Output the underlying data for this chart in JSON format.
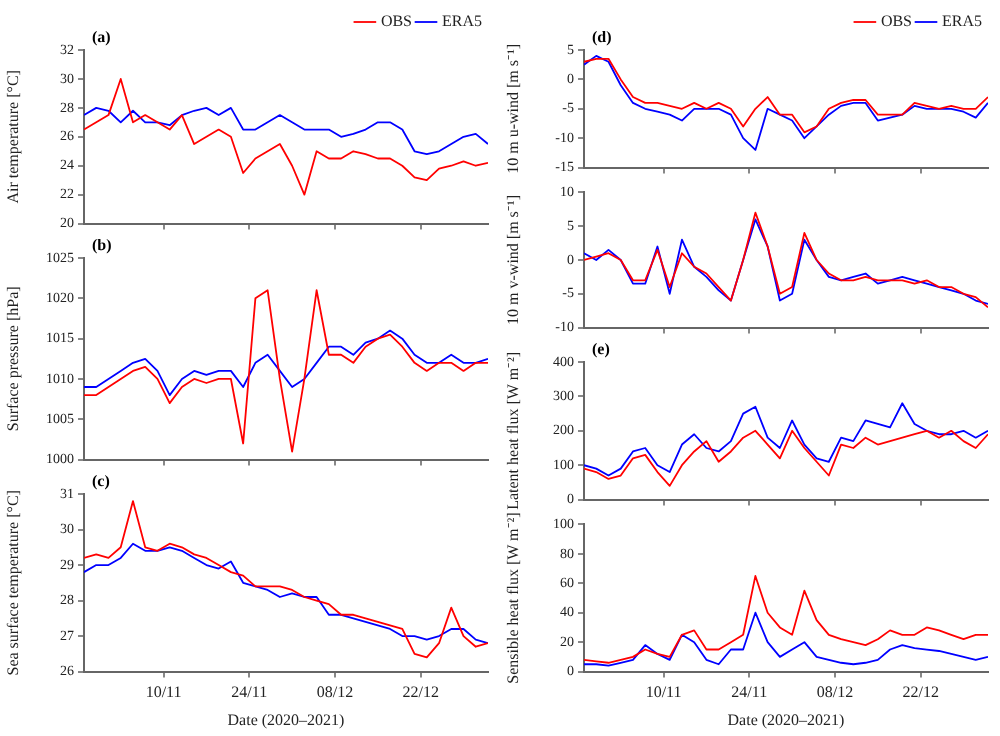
{
  "chart_data": [
    {
      "type": "line",
      "ylabel": "Air temperature [°C]",
      "annotations": [
        "(a)"
      ],
      "legend": "top right",
      "tick_labels": "y",
      "x": [
        "2020-10-28",
        "2020-10-30",
        "2020-11-01",
        "2020-11-03",
        "2020-11-05",
        "2020-11-07",
        "2020-11-09",
        "2020-11-11",
        "2020-11-13",
        "2020-11-15",
        "2020-11-17",
        "2020-11-19",
        "2020-11-21",
        "2020-11-23",
        "2020-11-25",
        "2020-11-27",
        "2020-11-29",
        "2020-12-01",
        "2020-12-03",
        "2020-12-05",
        "2020-12-07",
        "2020-12-09",
        "2020-12-11",
        "2020-12-13",
        "2020-12-15",
        "2020-12-17",
        "2020-12-19",
        "2020-12-21",
        "2020-12-23",
        "2020-12-25",
        "2020-12-27",
        "2020-12-29",
        "2020-12-31",
        "2021-01-02"
      ],
      "xlim": [
        "2020-10-28",
        "2021-01-02"
      ],
      "xticks": [
        {
          "value": "2020-11-10",
          "label": null
        },
        {
          "value": "2020-11-24",
          "label": null
        },
        {
          "value": "2020-12-08",
          "label": null
        },
        {
          "value": "2020-12-22",
          "label": null
        }
      ],
      "ylim": [
        20,
        32
      ],
      "yticks": [
        20,
        22,
        24,
        26,
        28,
        30,
        32
      ],
      "series": [
        {
          "name": "OBS",
          "color": "#ff0000",
          "values": [
            26.5,
            27,
            27.5,
            30,
            27,
            27.5,
            27,
            26.5,
            27.5,
            25.5,
            26,
            26.5,
            26,
            23.5,
            24.5,
            25,
            25.5,
            24,
            22,
            25,
            24.5,
            24.5,
            25,
            24.8,
            24.5,
            24.5,
            24,
            23.2,
            23,
            23.8,
            24,
            24.3,
            24,
            24.2
          ]
        },
        {
          "name": "ERA5",
          "color": "#0000ff",
          "values": [
            27.5,
            28,
            27.8,
            27,
            27.8,
            27,
            27,
            26.8,
            27.5,
            27.8,
            28,
            27.5,
            28,
            26.5,
            26.5,
            27,
            27.5,
            27,
            26.5,
            26.5,
            26.5,
            26,
            26.2,
            26.5,
            27,
            27,
            26.5,
            25,
            24.8,
            25,
            25.5,
            26,
            26.2,
            25.5
          ]
        }
      ]
    },
    {
      "type": "line",
      "ylabel": "Surface pressure [hPa]",
      "annotations": [
        "(b)"
      ],
      "tick_labels": "y",
      "x": [
        "2020-10-28",
        "2020-10-30",
        "2020-11-01",
        "2020-11-03",
        "2020-11-05",
        "2020-11-07",
        "2020-11-09",
        "2020-11-11",
        "2020-11-13",
        "2020-11-15",
        "2020-11-17",
        "2020-11-19",
        "2020-11-21",
        "2020-11-23",
        "2020-11-25",
        "2020-11-27",
        "2020-11-29",
        "2020-12-01",
        "2020-12-03",
        "2020-12-05",
        "2020-12-07",
        "2020-12-09",
        "2020-12-11",
        "2020-12-13",
        "2020-12-15",
        "2020-12-17",
        "2020-12-19",
        "2020-12-21",
        "2020-12-23",
        "2020-12-25",
        "2020-12-27",
        "2020-12-29",
        "2020-12-31",
        "2021-01-02"
      ],
      "xlim": [
        "2020-10-28",
        "2021-01-02"
      ],
      "xticks": [
        {
          "value": "2020-11-10",
          "label": null
        },
        {
          "value": "2020-11-24",
          "label": null
        },
        {
          "value": "2020-12-08",
          "label": null
        },
        {
          "value": "2020-12-22",
          "label": null
        }
      ],
      "ylim": [
        1000,
        1025
      ],
      "yticks": [
        1000,
        1005,
        1010,
        1015,
        1020,
        1025
      ],
      "series": [
        {
          "color": "#ff0000",
          "values": [
            1008,
            1008,
            1009,
            1010,
            1011,
            1011.5,
            1010,
            1007,
            1009,
            1010,
            1009.5,
            1010,
            1010,
            1002,
            1020,
            1021,
            1010,
            1001,
            1010,
            1021,
            1013,
            1013,
            1012,
            1014,
            1015,
            1015.5,
            1014,
            1012,
            1011,
            1012,
            1012,
            1011,
            1012,
            1012
          ]
        },
        {
          "color": "#0000ff",
          "values": [
            1009,
            1009,
            1010,
            1011,
            1012,
            1012.5,
            1011,
            1008,
            1010,
            1011,
            1010.5,
            1011,
            1011,
            1009,
            1012,
            1013,
            1011,
            1009,
            1010,
            1012,
            1014,
            1014,
            1013,
            1014.5,
            1015,
            1016,
            1015,
            1013,
            1012,
            1012,
            1013,
            1012,
            1012,
            1012.5
          ]
        }
      ]
    },
    {
      "type": "line",
      "xlabel": "Date (2020–2021)",
      "ylabel": "Sea surface temperature [°C]",
      "annotations": [
        "(c)"
      ],
      "x": [
        "2020-10-28",
        "2020-10-30",
        "2020-11-01",
        "2020-11-03",
        "2020-11-05",
        "2020-11-07",
        "2020-11-09",
        "2020-11-11",
        "2020-11-13",
        "2020-11-15",
        "2020-11-17",
        "2020-11-19",
        "2020-11-21",
        "2020-11-23",
        "2020-11-25",
        "2020-11-27",
        "2020-11-29",
        "2020-12-01",
        "2020-12-03",
        "2020-12-05",
        "2020-12-07",
        "2020-12-09",
        "2020-12-11",
        "2020-12-13",
        "2020-12-15",
        "2020-12-17",
        "2020-12-19",
        "2020-12-21",
        "2020-12-23",
        "2020-12-25",
        "2020-12-27",
        "2020-12-29",
        "2020-12-31",
        "2021-01-02"
      ],
      "xlim": [
        "2020-10-28",
        "2021-01-02"
      ],
      "xticks": [
        {
          "value": "2020-11-10",
          "label": "10/11"
        },
        {
          "value": "2020-11-24",
          "label": "24/11"
        },
        {
          "value": "2020-12-08",
          "label": "08/12"
        },
        {
          "value": "2020-12-22",
          "label": "22/12"
        }
      ],
      "ylim": [
        26,
        31
      ],
      "yticks": [
        26,
        27,
        28,
        29,
        30,
        31
      ],
      "series": [
        {
          "color": "#ff0000",
          "values": [
            29.2,
            29.3,
            29.2,
            29.5,
            30.8,
            29.5,
            29.4,
            29.6,
            29.5,
            29.3,
            29.2,
            29,
            28.8,
            28.7,
            28.4,
            28.4,
            28.4,
            28.3,
            28.1,
            28,
            27.9,
            27.6,
            27.6,
            27.5,
            27.4,
            27.3,
            27.2,
            26.5,
            26.4,
            26.8,
            27.8,
            27,
            26.7,
            26.8
          ]
        },
        {
          "color": "#0000ff",
          "values": [
            28.8,
            29,
            29,
            29.2,
            29.6,
            29.4,
            29.4,
            29.5,
            29.4,
            29.2,
            29,
            28.9,
            29.1,
            28.5,
            28.4,
            28.3,
            28.1,
            28.2,
            28.1,
            28.1,
            27.6,
            27.6,
            27.5,
            27.4,
            27.3,
            27.2,
            27,
            27,
            26.9,
            27,
            27.2,
            27.2,
            26.9,
            26.8
          ]
        }
      ]
    },
    {
      "type": "line",
      "ylabel": "10 m u-wind [m s⁻¹]",
      "annotations": [
        "(d)"
      ],
      "legend": "top right",
      "tick_labels": "y",
      "x": [
        "2020-10-28",
        "2020-10-30",
        "2020-11-01",
        "2020-11-03",
        "2020-11-05",
        "2020-11-07",
        "2020-11-09",
        "2020-11-11",
        "2020-11-13",
        "2020-11-15",
        "2020-11-17",
        "2020-11-19",
        "2020-11-21",
        "2020-11-23",
        "2020-11-25",
        "2020-11-27",
        "2020-11-29",
        "2020-12-01",
        "2020-12-03",
        "2020-12-05",
        "2020-12-07",
        "2020-12-09",
        "2020-12-11",
        "2020-12-13",
        "2020-12-15",
        "2020-12-17",
        "2020-12-19",
        "2020-12-21",
        "2020-12-23",
        "2020-12-25",
        "2020-12-27",
        "2020-12-29",
        "2020-12-31",
        "2021-01-02"
      ],
      "xlim": [
        "2020-10-28",
        "2021-01-02"
      ],
      "xticks": [
        {
          "value": "2020-11-10",
          "label": null
        },
        {
          "value": "2020-11-24",
          "label": null
        },
        {
          "value": "2020-12-08",
          "label": null
        },
        {
          "value": "2020-12-22",
          "label": null
        }
      ],
      "ylim": [
        -15,
        5
      ],
      "yticks": [
        -15,
        -10,
        -5,
        0,
        5
      ],
      "series": [
        {
          "name": "OBS",
          "color": "#ff0000",
          "values": [
            3,
            3.5,
            3.5,
            0,
            -3,
            -4,
            -4,
            -4.5,
            -5,
            -4,
            -5,
            -4,
            -5,
            -8,
            -5,
            -3,
            -6,
            -6,
            -9,
            -8,
            -5,
            -4,
            -3.5,
            -3.5,
            -6,
            -6,
            -6,
            -4,
            -4.5,
            -5,
            -4.5,
            -5,
            -5,
            -3
          ]
        },
        {
          "name": "ERA5",
          "color": "#0000ff",
          "values": [
            2.5,
            4,
            3,
            -1,
            -4,
            -5,
            -5.5,
            -6,
            -7,
            -5,
            -5,
            -5,
            -6,
            -10,
            -12,
            -5,
            -6,
            -7,
            -10,
            -8,
            -6,
            -4.5,
            -4,
            -4,
            -7,
            -6.5,
            -6,
            -4.5,
            -5,
            -5,
            -5,
            -5.5,
            -6.5,
            -4
          ]
        }
      ]
    },
    {
      "type": "line",
      "ylabel": "10 m v-wind [m s⁻¹]",
      "tick_labels": "y",
      "x": [
        "2020-10-28",
        "2020-10-30",
        "2020-11-01",
        "2020-11-03",
        "2020-11-05",
        "2020-11-07",
        "2020-11-09",
        "2020-11-11",
        "2020-11-13",
        "2020-11-15",
        "2020-11-17",
        "2020-11-19",
        "2020-11-21",
        "2020-11-23",
        "2020-11-25",
        "2020-11-27",
        "2020-11-29",
        "2020-12-01",
        "2020-12-03",
        "2020-12-05",
        "2020-12-07",
        "2020-12-09",
        "2020-12-11",
        "2020-12-13",
        "2020-12-15",
        "2020-12-17",
        "2020-12-19",
        "2020-12-21",
        "2020-12-23",
        "2020-12-25",
        "2020-12-27",
        "2020-12-29",
        "2020-12-31",
        "2021-01-02"
      ],
      "xlim": [
        "2020-10-28",
        "2021-01-02"
      ],
      "xticks": [
        {
          "value": "2020-11-10",
          "label": null
        },
        {
          "value": "2020-11-24",
          "label": null
        },
        {
          "value": "2020-12-08",
          "label": null
        },
        {
          "value": "2020-12-22",
          "label": null
        }
      ],
      "ylim": [
        -10,
        10
      ],
      "yticks": [
        -10,
        -5,
        0,
        5,
        10
      ],
      "series": [
        {
          "color": "#ff0000",
          "values": [
            0,
            0.5,
            1,
            0,
            -3,
            -3,
            1.5,
            -4,
            1,
            -1,
            -2,
            -4,
            -6,
            0,
            7,
            2,
            -5,
            -4,
            4,
            0,
            -2,
            -3,
            -3,
            -2.5,
            -3,
            -3,
            -3,
            -3.5,
            -3,
            -4,
            -4,
            -5,
            -5.5,
            -7
          ]
        },
        {
          "color": "#0000ff",
          "values": [
            1,
            0,
            1.5,
            0,
            -3.5,
            -3.5,
            2,
            -5,
            3,
            -1,
            -2.5,
            -4.5,
            -6,
            0,
            6,
            2,
            -6,
            -5,
            3,
            0,
            -2.5,
            -3,
            -2.5,
            -2,
            -3.5,
            -3,
            -2.5,
            -3,
            -3.5,
            -4,
            -4.5,
            -5,
            -6,
            -6.5
          ]
        }
      ]
    },
    {
      "type": "line",
      "ylabel": "Latent heat flux [W m⁻²]",
      "annotations": [
        "(e)"
      ],
      "tick_labels": "y",
      "x": [
        "2020-10-28",
        "2020-10-30",
        "2020-11-01",
        "2020-11-03",
        "2020-11-05",
        "2020-11-07",
        "2020-11-09",
        "2020-11-11",
        "2020-11-13",
        "2020-11-15",
        "2020-11-17",
        "2020-11-19",
        "2020-11-21",
        "2020-11-23",
        "2020-11-25",
        "2020-11-27",
        "2020-11-29",
        "2020-12-01",
        "2020-12-03",
        "2020-12-05",
        "2020-12-07",
        "2020-12-09",
        "2020-12-11",
        "2020-12-13",
        "2020-12-15",
        "2020-12-17",
        "2020-12-19",
        "2020-12-21",
        "2020-12-23",
        "2020-12-25",
        "2020-12-27",
        "2020-12-29",
        "2020-12-31",
        "2021-01-02"
      ],
      "xlim": [
        "2020-10-28",
        "2021-01-02"
      ],
      "xticks": [
        {
          "value": "2020-11-10",
          "label": null
        },
        {
          "value": "2020-11-24",
          "label": null
        },
        {
          "value": "2020-12-08",
          "label": null
        },
        {
          "value": "2020-12-22",
          "label": null
        }
      ],
      "ylim": [
        0,
        400
      ],
      "yticks": [
        0,
        100,
        200,
        300,
        400
      ],
      "series": [
        {
          "color": "#ff0000",
          "values": [
            90,
            80,
            60,
            70,
            120,
            130,
            80,
            40,
            100,
            140,
            170,
            110,
            140,
            180,
            200,
            160,
            120,
            200,
            150,
            110,
            70,
            160,
            150,
            180,
            160,
            170,
            180,
            190,
            200,
            180,
            200,
            170,
            150,
            190
          ]
        },
        {
          "color": "#0000ff",
          "values": [
            100,
            90,
            70,
            90,
            140,
            150,
            100,
            80,
            160,
            190,
            150,
            140,
            170,
            250,
            270,
            180,
            150,
            230,
            160,
            120,
            110,
            180,
            170,
            230,
            220,
            210,
            280,
            220,
            200,
            190,
            190,
            200,
            180,
            200
          ]
        }
      ]
    },
    {
      "type": "line",
      "xlabel": "Date (2020–2021)",
      "ylabel": "Sensible heat flux [W m⁻²]",
      "x": [
        "2020-10-28",
        "2020-10-30",
        "2020-11-01",
        "2020-11-03",
        "2020-11-05",
        "2020-11-07",
        "2020-11-09",
        "2020-11-11",
        "2020-11-13",
        "2020-11-15",
        "2020-11-17",
        "2020-11-19",
        "2020-11-21",
        "2020-11-23",
        "2020-11-25",
        "2020-11-27",
        "2020-11-29",
        "2020-12-01",
        "2020-12-03",
        "2020-12-05",
        "2020-12-07",
        "2020-12-09",
        "2020-12-11",
        "2020-12-13",
        "2020-12-15",
        "2020-12-17",
        "2020-12-19",
        "2020-12-21",
        "2020-12-23",
        "2020-12-25",
        "2020-12-27",
        "2020-12-29",
        "2020-12-31",
        "2021-01-02"
      ],
      "xlim": [
        "2020-10-28",
        "2021-01-02"
      ],
      "xticks": [
        {
          "value": "2020-11-10",
          "label": "10/11"
        },
        {
          "value": "2020-11-24",
          "label": "24/11"
        },
        {
          "value": "2020-12-08",
          "label": "08/12"
        },
        {
          "value": "2020-12-22",
          "label": "22/12"
        }
      ],
      "ylim": [
        0,
        100
      ],
      "yticks": [
        0,
        20,
        40,
        60,
        80,
        100
      ],
      "series": [
        {
          "color": "#ff0000",
          "values": [
            8,
            7,
            6,
            8,
            10,
            15,
            12,
            10,
            25,
            28,
            15,
            15,
            20,
            25,
            65,
            40,
            30,
            25,
            55,
            35,
            25,
            22,
            20,
            18,
            22,
            28,
            25,
            25,
            30,
            28,
            25,
            22,
            25,
            25
          ]
        },
        {
          "color": "#0000ff",
          "values": [
            5,
            5,
            4,
            6,
            8,
            18,
            12,
            8,
            25,
            20,
            8,
            5,
            15,
            15,
            40,
            20,
            10,
            15,
            20,
            10,
            8,
            6,
            5,
            6,
            8,
            15,
            18,
            16,
            15,
            14,
            12,
            10,
            8,
            10
          ]
        }
      ]
    }
  ]
}
